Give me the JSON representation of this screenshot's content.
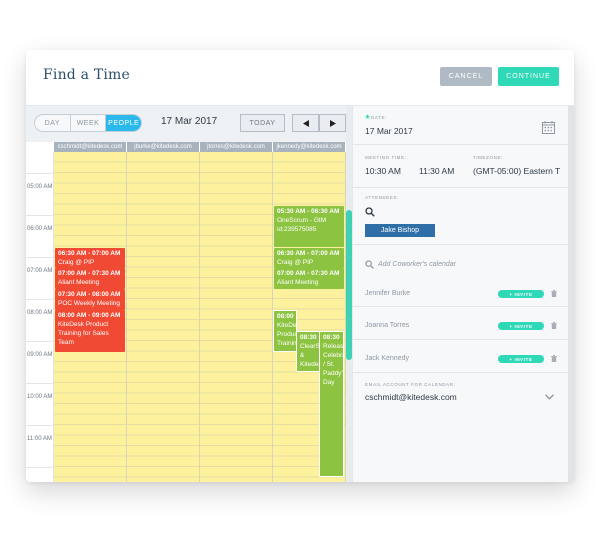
{
  "header": {
    "title": "Find a Time",
    "cancel_label": "CANCEL",
    "continue_label": "CONTINUE"
  },
  "toolbar": {
    "views": [
      "DAY",
      "WEEK",
      "PEOPLE"
    ],
    "active_view": "PEOPLE",
    "date": "17 Mar 2017",
    "today_label": "TODAY",
    "prev_icon": "triangle-left-icon",
    "next_icon": "triangle-right-icon"
  },
  "calendar": {
    "columns": [
      "cschmidt@kitedesk.com",
      "jburke@kitedesk.com",
      "jtorres@kitedesk.com",
      "jkennedy@kitedesk.com"
    ],
    "hours": [
      "05:00 AM",
      "06:00 AM",
      "07:00 AM",
      "08:00 AM",
      "09:00 AM",
      "10:00 AM",
      "11:00 AM"
    ],
    "events": [
      {
        "col": 0,
        "time": "06:30 AM - 07:00 AM",
        "title": "Craig @ PIP",
        "color": "#f04a34"
      },
      {
        "col": 0,
        "time": "07:00 AM - 07:30 AM",
        "title": "Aliant Meeting",
        "color": "#f04a34"
      },
      {
        "col": 0,
        "time": "07:30 AM - 08:00 AM",
        "title": "POC Weekly Meeting",
        "color": "#f04a34"
      },
      {
        "col": 0,
        "time": "08:00 AM - 09:00 AM",
        "title": "KiteDesk Product Training for Sales Team",
        "color": "#f04a34"
      },
      {
        "col": 3,
        "time": "05:30 AM - 06:30 AM",
        "title": "OneScrum - GtM id:239575085",
        "color": "#8cc340"
      },
      {
        "col": 3,
        "time": "06:30 AM - 07:00 AM",
        "title": "Craig @ PIP",
        "color": "#8cc340"
      },
      {
        "col": 3,
        "time": "07:00 AM - 07:30 AM",
        "title": "Aliant Meeting",
        "color": "#8cc340"
      },
      {
        "col": 3,
        "time": "08:00",
        "title": "KiteDesk Product Training",
        "color": "#8cc340"
      },
      {
        "col": 3,
        "time": "08:30",
        "title": "ClearSlide & Kitedesk",
        "color": "#8cc340"
      },
      {
        "col": 3,
        "time": "08:30",
        "title": "Release Celebration / St. Paddy's Day",
        "color": "#8cc340"
      }
    ]
  },
  "panel": {
    "date_label": "DATE:",
    "date_value": "17 Mar 2017",
    "meeting_time_label": "MEETING TIME:",
    "start_time": "10:30 AM",
    "end_time": "11:30 AM",
    "timezone_label": "TIMEZONE:",
    "timezone_value": "(GMT-05:00) Eastern T",
    "attendees_label": "ATTENDEES:",
    "attendee": "Jake Bishop",
    "add_placeholder": "Add Coworker's calendar",
    "people": [
      {
        "name": "Jennifer Burke",
        "invite": "+ INVITE"
      },
      {
        "name": "Joanna Torres",
        "invite": "+ INVITE"
      },
      {
        "name": "Jack Kennedy",
        "invite": "+ INVITE"
      }
    ],
    "email_label": "EMAIL ACCOUNT FOR CALENDAR:",
    "email_value": "cschmidt@kitedesk.com"
  },
  "colors": {
    "accent": "#2fd8b7",
    "active_tab": "#2bb8ea",
    "busy": "#f04a34",
    "available": "#8cc340",
    "free": "#fdf19e"
  }
}
